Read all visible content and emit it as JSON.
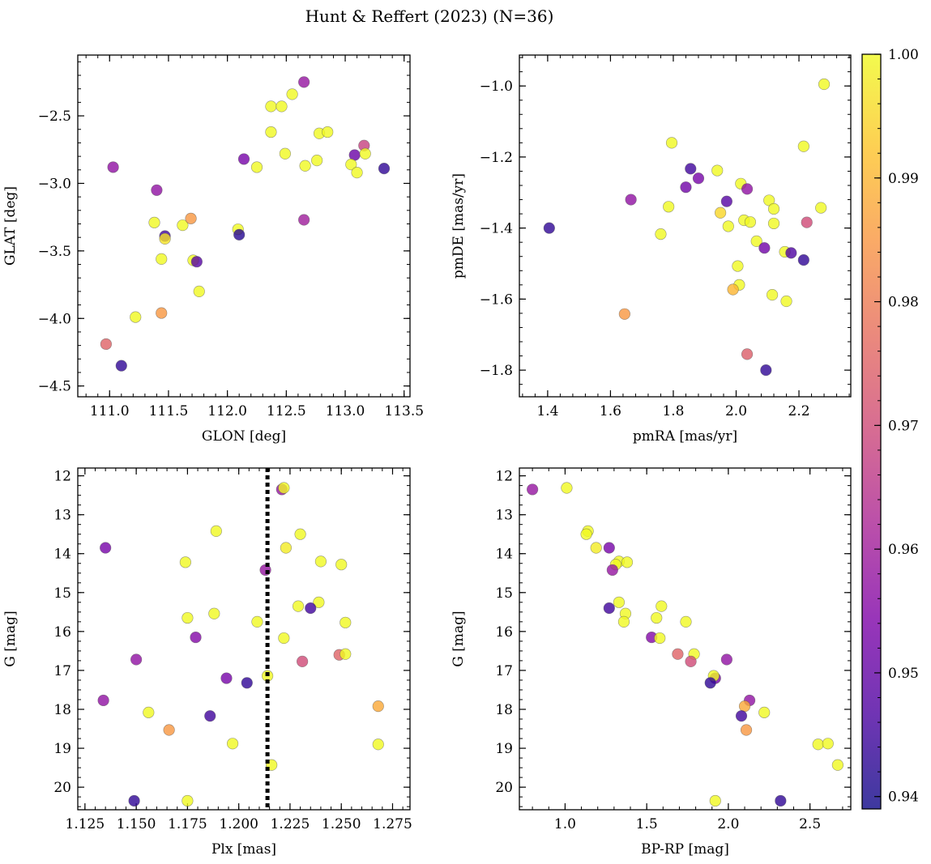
{
  "figure": {
    "title": "Hunt & Reffert (2023) (N=36)"
  },
  "colorbar": {
    "vmin": 0.939,
    "vmax": 1.0,
    "ticks": [
      0.94,
      0.95,
      0.96,
      0.97,
      0.98,
      0.99,
      1.0
    ],
    "tick_labels": [
      "0.94",
      "0.95",
      "0.96",
      "0.97",
      "0.98",
      "0.99",
      "1.00"
    ],
    "colormap": "plasma"
  },
  "chart_data": [
    {
      "type": "scatter",
      "xlabel": "GLON [deg]",
      "ylabel": "GLAT [deg]",
      "xlim": [
        110.73,
        113.55
      ],
      "ylim": [
        -4.58,
        -2.05
      ],
      "xticks": [
        111.0,
        111.5,
        112.0,
        112.5,
        113.0,
        113.5
      ],
      "xtick_labels": [
        "111.0",
        "111.5",
        "112.0",
        "112.5",
        "113.0",
        "113.5"
      ],
      "yticks": [
        -2.5,
        -3.0,
        -3.5,
        -4.0,
        -4.5
      ],
      "ytick_labels": [
        "−2.5",
        "−3.0",
        "−3.5",
        "−4.0",
        "−4.5"
      ],
      "y_inverted": false,
      "vline": null,
      "points": [
        {
          "x": 112.65,
          "y": -2.25,
          "c": 0.958
        },
        {
          "x": 112.55,
          "y": -2.34,
          "c": 1.0
        },
        {
          "x": 112.37,
          "y": -2.43,
          "c": 1.0
        },
        {
          "x": 112.46,
          "y": -2.43,
          "c": 1.0
        },
        {
          "x": 112.37,
          "y": -2.62,
          "c": 1.0
        },
        {
          "x": 112.78,
          "y": -2.63,
          "c": 1.0
        },
        {
          "x": 112.85,
          "y": -2.62,
          "c": 1.0
        },
        {
          "x": 113.16,
          "y": -2.72,
          "c": 0.968
        },
        {
          "x": 113.08,
          "y": -2.79,
          "c": 0.951
        },
        {
          "x": 113.17,
          "y": -2.78,
          "c": 1.0
        },
        {
          "x": 112.49,
          "y": -2.78,
          "c": 1.0
        },
        {
          "x": 112.76,
          "y": -2.83,
          "c": 1.0
        },
        {
          "x": 112.14,
          "y": -2.82,
          "c": 0.953
        },
        {
          "x": 112.25,
          "y": -2.88,
          "c": 1.0
        },
        {
          "x": 112.66,
          "y": -2.87,
          "c": 1.0
        },
        {
          "x": 113.05,
          "y": -2.86,
          "c": 1.0
        },
        {
          "x": 113.1,
          "y": -2.92,
          "c": 1.0
        },
        {
          "x": 113.33,
          "y": -2.89,
          "c": 0.943
        },
        {
          "x": 111.03,
          "y": -2.88,
          "c": 0.957
        },
        {
          "x": 111.4,
          "y": -3.05,
          "c": 0.957
        },
        {
          "x": 111.38,
          "y": -3.29,
          "c": 1.0
        },
        {
          "x": 111.47,
          "y": -3.39,
          "c": 0.945
        },
        {
          "x": 111.47,
          "y": -3.41,
          "c": 0.997
        },
        {
          "x": 111.62,
          "y": -3.31,
          "c": 1.0
        },
        {
          "x": 111.69,
          "y": -3.26,
          "c": 0.985
        },
        {
          "x": 112.65,
          "y": -3.27,
          "c": 0.96
        },
        {
          "x": 112.09,
          "y": -3.34,
          "c": 1.0
        },
        {
          "x": 112.1,
          "y": -3.38,
          "c": 0.942
        },
        {
          "x": 111.44,
          "y": -3.56,
          "c": 1.0
        },
        {
          "x": 111.71,
          "y": -3.57,
          "c": 1.0
        },
        {
          "x": 111.74,
          "y": -3.58,
          "c": 0.948
        },
        {
          "x": 111.76,
          "y": -3.8,
          "c": 1.0
        },
        {
          "x": 111.22,
          "y": -3.99,
          "c": 1.0
        },
        {
          "x": 111.44,
          "y": -3.96,
          "c": 0.985
        },
        {
          "x": 110.97,
          "y": -4.19,
          "c": 0.975
        },
        {
          "x": 111.1,
          "y": -4.35,
          "c": 0.943
        }
      ]
    },
    {
      "type": "scatter",
      "xlabel": "pmRA [mas/yr]",
      "ylabel": "pmDE [mas/yr]",
      "xlim": [
        1.31,
        2.365
      ],
      "ylim": [
        -1.875,
        -0.913
      ],
      "xticks": [
        1.4,
        1.6,
        1.8,
        2.0,
        2.2
      ],
      "xtick_labels": [
        "1.4",
        "1.6",
        "1.8",
        "2.0",
        "2.2"
      ],
      "yticks": [
        -1.0,
        -1.2,
        -1.4,
        -1.6,
        -1.8
      ],
      "ytick_labels": [
        "−1.0",
        "−1.2",
        "−1.4",
        "−1.6",
        "−1.8"
      ],
      "y_inverted": false,
      "vline": null,
      "points": [
        {
          "x": 2.28,
          "y": -0.995,
          "c": 1.0
        },
        {
          "x": 1.795,
          "y": -1.16,
          "c": 1.0
        },
        {
          "x": 2.215,
          "y": -1.17,
          "c": 1.0
        },
        {
          "x": 1.855,
          "y": -1.233,
          "c": 0.945
        },
        {
          "x": 1.94,
          "y": -1.238,
          "c": 1.0
        },
        {
          "x": 1.88,
          "y": -1.26,
          "c": 0.953
        },
        {
          "x": 2.015,
          "y": -1.275,
          "c": 1.0
        },
        {
          "x": 1.84,
          "y": -1.285,
          "c": 0.952
        },
        {
          "x": 2.035,
          "y": -1.29,
          "c": 0.957
        },
        {
          "x": 1.665,
          "y": -1.32,
          "c": 0.957
        },
        {
          "x": 1.97,
          "y": -1.325,
          "c": 0.948
        },
        {
          "x": 2.105,
          "y": -1.322,
          "c": 1.0
        },
        {
          "x": 2.27,
          "y": -1.343,
          "c": 1.0
        },
        {
          "x": 1.785,
          "y": -1.34,
          "c": 1.0
        },
        {
          "x": 2.12,
          "y": -1.346,
          "c": 1.0
        },
        {
          "x": 1.95,
          "y": -1.357,
          "c": 0.995
        },
        {
          "x": 2.025,
          "y": -1.378,
          "c": 1.0
        },
        {
          "x": 2.045,
          "y": -1.383,
          "c": 1.0
        },
        {
          "x": 2.225,
          "y": -1.384,
          "c": 0.97
        },
        {
          "x": 2.12,
          "y": -1.387,
          "c": 1.0
        },
        {
          "x": 1.975,
          "y": -1.395,
          "c": 1.0
        },
        {
          "x": 1.405,
          "y": -1.4,
          "c": 0.943
        },
        {
          "x": 1.76,
          "y": -1.417,
          "c": 1.0
        },
        {
          "x": 2.065,
          "y": -1.437,
          "c": 1.0
        },
        {
          "x": 2.09,
          "y": -1.456,
          "c": 0.952
        },
        {
          "x": 2.155,
          "y": -1.467,
          "c": 1.0
        },
        {
          "x": 2.175,
          "y": -1.47,
          "c": 0.947
        },
        {
          "x": 2.215,
          "y": -1.49,
          "c": 0.943
        },
        {
          "x": 2.005,
          "y": -1.507,
          "c": 1.0
        },
        {
          "x": 2.01,
          "y": -1.56,
          "c": 1.0
        },
        {
          "x": 1.99,
          "y": -1.573,
          "c": 0.99
        },
        {
          "x": 2.115,
          "y": -1.588,
          "c": 1.0
        },
        {
          "x": 2.16,
          "y": -1.606,
          "c": 1.0
        },
        {
          "x": 1.645,
          "y": -1.642,
          "c": 0.985
        },
        {
          "x": 2.035,
          "y": -1.755,
          "c": 0.974
        },
        {
          "x": 2.095,
          "y": -1.8,
          "c": 0.943
        }
      ]
    },
    {
      "type": "scatter",
      "xlabel": "Plx [mas]",
      "ylabel": "G [mag]",
      "xlim": [
        1.1215,
        1.2835
      ],
      "ylim": [
        20.58,
        11.8
      ],
      "xticks": [
        1.125,
        1.15,
        1.175,
        1.2,
        1.225,
        1.25,
        1.275
      ],
      "xtick_labels": [
        "1.125",
        "1.150",
        "1.175",
        "1.200",
        "1.225",
        "1.250",
        "1.275"
      ],
      "yticks": [
        12,
        13,
        14,
        15,
        16,
        17,
        18,
        19,
        20
      ],
      "ytick_labels": [
        "12",
        "13",
        "14",
        "15",
        "16",
        "17",
        "18",
        "19",
        "20"
      ],
      "y_inverted": true,
      "vline": 1.214,
      "points": [
        {
          "x": 1.221,
          "y": 12.35,
          "c": 0.958
        },
        {
          "x": 1.222,
          "y": 12.31,
          "c": 1.0
        },
        {
          "x": 1.189,
          "y": 13.42,
          "c": 1.0
        },
        {
          "x": 1.23,
          "y": 13.5,
          "c": 1.0
        },
        {
          "x": 1.135,
          "y": 13.85,
          "c": 0.953
        },
        {
          "x": 1.223,
          "y": 13.85,
          "c": 0.998
        },
        {
          "x": 1.174,
          "y": 14.22,
          "c": 1.0
        },
        {
          "x": 1.24,
          "y": 14.2,
          "c": 1.0
        },
        {
          "x": 1.25,
          "y": 14.28,
          "c": 1.0
        },
        {
          "x": 1.213,
          "y": 14.42,
          "c": 0.958
        },
        {
          "x": 1.239,
          "y": 15.25,
          "c": 1.0
        },
        {
          "x": 1.229,
          "y": 15.35,
          "c": 1.0
        },
        {
          "x": 1.235,
          "y": 15.4,
          "c": 0.945
        },
        {
          "x": 1.188,
          "y": 15.54,
          "c": 1.0
        },
        {
          "x": 1.175,
          "y": 15.65,
          "c": 1.0
        },
        {
          "x": 1.209,
          "y": 15.75,
          "c": 1.0
        },
        {
          "x": 1.252,
          "y": 15.77,
          "c": 1.0
        },
        {
          "x": 1.179,
          "y": 16.15,
          "c": 0.955
        },
        {
          "x": 1.222,
          "y": 16.17,
          "c": 1.0
        },
        {
          "x": 1.249,
          "y": 16.6,
          "c": 0.975
        },
        {
          "x": 1.252,
          "y": 16.58,
          "c": 1.0
        },
        {
          "x": 1.15,
          "y": 16.72,
          "c": 0.957
        },
        {
          "x": 1.231,
          "y": 16.77,
          "c": 0.97
        },
        {
          "x": 1.214,
          "y": 17.14,
          "c": 1.0
        },
        {
          "x": 1.194,
          "y": 17.2,
          "c": 0.953
        },
        {
          "x": 1.204,
          "y": 17.32,
          "c": 0.943
        },
        {
          "x": 1.134,
          "y": 17.77,
          "c": 0.957
        },
        {
          "x": 1.268,
          "y": 17.92,
          "c": 0.988
        },
        {
          "x": 1.156,
          "y": 18.08,
          "c": 1.0
        },
        {
          "x": 1.186,
          "y": 18.17,
          "c": 0.945
        },
        {
          "x": 1.166,
          "y": 18.53,
          "c": 0.985
        },
        {
          "x": 1.197,
          "y": 18.88,
          "c": 1.0
        },
        {
          "x": 1.268,
          "y": 18.9,
          "c": 1.0
        },
        {
          "x": 1.216,
          "y": 19.43,
          "c": 1.0
        },
        {
          "x": 1.149,
          "y": 20.35,
          "c": 0.943
        },
        {
          "x": 1.175,
          "y": 20.35,
          "c": 1.0
        }
      ]
    },
    {
      "type": "scatter",
      "xlabel": "BP-RP [mag]",
      "ylabel": "G [mag]",
      "xlim": [
        0.72,
        2.75
      ],
      "ylim": [
        20.58,
        11.8
      ],
      "xticks": [
        1.0,
        1.5,
        2.0,
        2.5
      ],
      "xtick_labels": [
        "1.0",
        "1.5",
        "2.0",
        "2.5"
      ],
      "yticks": [
        12,
        13,
        14,
        15,
        16,
        17,
        18,
        19,
        20
      ],
      "ytick_labels": [
        "12",
        "13",
        "14",
        "15",
        "16",
        "17",
        "18",
        "19",
        "20"
      ],
      "y_inverted": true,
      "vline": null,
      "points": [
        {
          "x": 0.8,
          "y": 12.35,
          "c": 0.958
        },
        {
          "x": 1.01,
          "y": 12.31,
          "c": 1.0
        },
        {
          "x": 1.14,
          "y": 13.42,
          "c": 1.0
        },
        {
          "x": 1.13,
          "y": 13.5,
          "c": 1.0
        },
        {
          "x": 1.19,
          "y": 13.85,
          "c": 0.998
        },
        {
          "x": 1.27,
          "y": 13.85,
          "c": 0.953
        },
        {
          "x": 1.33,
          "y": 14.2,
          "c": 1.0
        },
        {
          "x": 1.31,
          "y": 14.28,
          "c": 1.0
        },
        {
          "x": 1.38,
          "y": 14.22,
          "c": 1.0
        },
        {
          "x": 1.29,
          "y": 14.42,
          "c": 0.958
        },
        {
          "x": 1.33,
          "y": 15.25,
          "c": 1.0
        },
        {
          "x": 1.27,
          "y": 15.4,
          "c": 0.945
        },
        {
          "x": 1.59,
          "y": 15.35,
          "c": 1.0
        },
        {
          "x": 1.37,
          "y": 15.54,
          "c": 1.0
        },
        {
          "x": 1.56,
          "y": 15.65,
          "c": 1.0
        },
        {
          "x": 1.36,
          "y": 15.75,
          "c": 1.0
        },
        {
          "x": 1.74,
          "y": 15.75,
          "c": 1.0
        },
        {
          "x": 1.53,
          "y": 16.15,
          "c": 0.955
        },
        {
          "x": 1.58,
          "y": 16.17,
          "c": 1.0
        },
        {
          "x": 1.69,
          "y": 16.58,
          "c": 0.975
        },
        {
          "x": 1.79,
          "y": 16.58,
          "c": 1.0
        },
        {
          "x": 1.77,
          "y": 16.77,
          "c": 0.97
        },
        {
          "x": 1.99,
          "y": 16.72,
          "c": 0.957
        },
        {
          "x": 1.92,
          "y": 17.2,
          "c": 0.953
        },
        {
          "x": 1.91,
          "y": 17.14,
          "c": 1.0
        },
        {
          "x": 1.89,
          "y": 17.32,
          "c": 0.943
        },
        {
          "x": 2.13,
          "y": 17.77,
          "c": 0.957
        },
        {
          "x": 2.1,
          "y": 17.92,
          "c": 0.988
        },
        {
          "x": 2.22,
          "y": 18.08,
          "c": 1.0
        },
        {
          "x": 2.08,
          "y": 18.17,
          "c": 0.945
        },
        {
          "x": 2.11,
          "y": 18.53,
          "c": 0.985
        },
        {
          "x": 2.55,
          "y": 18.9,
          "c": 1.0
        },
        {
          "x": 2.61,
          "y": 18.88,
          "c": 1.0
        },
        {
          "x": 2.67,
          "y": 19.43,
          "c": 1.0
        },
        {
          "x": 1.92,
          "y": 20.35,
          "c": 1.0
        },
        {
          "x": 2.32,
          "y": 20.35,
          "c": 0.943
        }
      ]
    }
  ]
}
